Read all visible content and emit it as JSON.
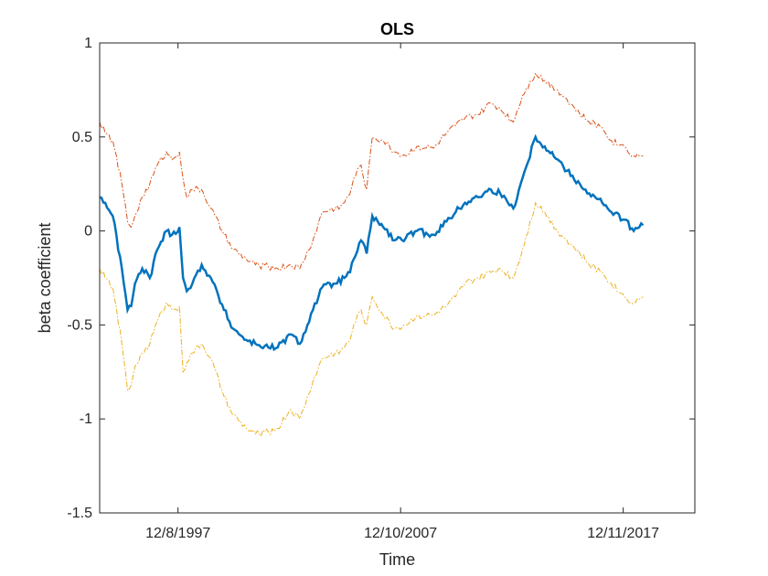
{
  "chart_data": {
    "type": "line",
    "title": "OLS",
    "xlabel": "Time",
    "ylabel": "beta coefficient",
    "xlim": [
      "1994-06-01",
      "2021-03-01"
    ],
    "ylim": [
      -1.5,
      1
    ],
    "yticks": [
      -1.5,
      -1,
      -0.5,
      0,
      0.5,
      1
    ],
    "ytick_labels": [
      "-1.5",
      "-1",
      "-0.5",
      "0",
      "0.5",
      "1"
    ],
    "xticks": [
      "1997-12-08",
      "2007-12-10",
      "2017-12-11"
    ],
    "xtick_labels": [
      "12/8/1997",
      "12/10/2007",
      "12/11/2017"
    ],
    "grid": false,
    "legend": "none",
    "series": [
      {
        "role": "upper",
        "color": "#D95319",
        "style": "dash-dot",
        "x": [
          "1994-06-01",
          "1994-09-01",
          "1995-01-01",
          "1995-06-01",
          "1995-09-01",
          "1995-11-01",
          "1996-01-01",
          "1996-05-01",
          "1996-09-01",
          "1997-01-01",
          "1997-06-01",
          "1997-09-01",
          "1998-01-01",
          "1998-03-01",
          "1998-05-01",
          "1998-08-01",
          "1999-01-01",
          "1999-06-01",
          "2000-01-01",
          "2000-06-01",
          "2001-01-01",
          "2001-06-01",
          "2002-01-01",
          "2002-06-01",
          "2003-01-01",
          "2003-06-01",
          "2004-01-01",
          "2004-06-01",
          "2005-01-01",
          "2005-06-01",
          "2005-09-01",
          "2005-11-01",
          "2006-03-01",
          "2006-06-01",
          "2006-09-01",
          "2007-03-01",
          "2007-09-01",
          "2008-03-01",
          "2008-09-01",
          "2009-06-01",
          "2010-01-01",
          "2010-06-01",
          "2010-11-01",
          "2011-06-01",
          "2012-01-01",
          "2012-06-01",
          "2013-01-01",
          "2013-06-01",
          "2014-01-01",
          "2014-06-01",
          "2015-01-01",
          "2015-06-01",
          "2016-01-01",
          "2016-06-01",
          "2017-01-01",
          "2017-06-01",
          "2018-01-01",
          "2018-06-01",
          "2018-11-01"
        ],
        "y": [
          0.58,
          0.52,
          0.48,
          0.25,
          0.05,
          0.02,
          0.08,
          0.18,
          0.25,
          0.35,
          0.42,
          0.38,
          0.42,
          0.28,
          0.18,
          0.22,
          0.22,
          0.12,
          -0.02,
          -0.1,
          -0.15,
          -0.18,
          -0.19,
          -0.2,
          -0.18,
          -0.2,
          -0.05,
          0.1,
          0.12,
          0.15,
          0.2,
          0.28,
          0.35,
          0.22,
          0.5,
          0.48,
          0.42,
          0.4,
          0.45,
          0.44,
          0.52,
          0.56,
          0.6,
          0.62,
          0.68,
          0.65,
          0.58,
          0.72,
          0.84,
          0.8,
          0.75,
          0.7,
          0.62,
          0.58,
          0.55,
          0.48,
          0.45,
          0.4,
          0.4
        ]
      },
      {
        "role": "estimate",
        "color": "#0072BD",
        "style": "solid",
        "x": [
          "1994-06-01",
          "1994-09-01",
          "1995-01-01",
          "1995-06-01",
          "1995-09-01",
          "1995-11-01",
          "1996-01-01",
          "1996-05-01",
          "1996-09-01",
          "1997-01-01",
          "1997-06-01",
          "1997-09-01",
          "1998-01-01",
          "1998-03-01",
          "1998-05-01",
          "1998-08-01",
          "1999-01-01",
          "1999-06-01",
          "2000-01-01",
          "2000-06-01",
          "2001-01-01",
          "2001-06-01",
          "2002-01-01",
          "2002-06-01",
          "2003-01-01",
          "2003-06-01",
          "2004-01-01",
          "2004-06-01",
          "2005-01-01",
          "2005-06-01",
          "2005-09-01",
          "2005-11-01",
          "2006-03-01",
          "2006-06-01",
          "2006-09-01",
          "2007-03-01",
          "2007-09-01",
          "2008-03-01",
          "2008-09-01",
          "2009-06-01",
          "2010-01-01",
          "2010-06-01",
          "2010-11-01",
          "2011-06-01",
          "2012-01-01",
          "2012-06-01",
          "2013-01-01",
          "2013-06-01",
          "2014-01-01",
          "2014-06-01",
          "2015-01-01",
          "2015-06-01",
          "2016-01-01",
          "2016-06-01",
          "2017-01-01",
          "2017-06-01",
          "2018-01-01",
          "2018-06-01",
          "2018-11-01"
        ],
        "y": [
          0.18,
          0.15,
          0.08,
          -0.2,
          -0.42,
          -0.4,
          -0.28,
          -0.2,
          -0.25,
          -0.1,
          0.0,
          -0.02,
          0.02,
          -0.25,
          -0.32,
          -0.28,
          -0.18,
          -0.25,
          -0.42,
          -0.52,
          -0.58,
          -0.6,
          -0.62,
          -0.62,
          -0.55,
          -0.6,
          -0.42,
          -0.3,
          -0.28,
          -0.25,
          -0.22,
          -0.15,
          -0.05,
          -0.12,
          0.08,
          0.02,
          -0.05,
          -0.04,
          0.0,
          -0.02,
          0.05,
          0.1,
          0.15,
          0.18,
          0.22,
          0.2,
          0.12,
          0.28,
          0.5,
          0.45,
          0.38,
          0.32,
          0.25,
          0.2,
          0.15,
          0.1,
          0.06,
          0.0,
          0.03
        ]
      },
      {
        "role": "lower",
        "color": "#EDB120",
        "style": "dash-dot",
        "x": [
          "1994-06-01",
          "1994-09-01",
          "1995-01-01",
          "1995-06-01",
          "1995-09-01",
          "1995-11-01",
          "1996-01-01",
          "1996-05-01",
          "1996-09-01",
          "1997-01-01",
          "1997-06-01",
          "1997-09-01",
          "1998-01-01",
          "1998-03-01",
          "1998-05-01",
          "1998-08-01",
          "1999-01-01",
          "1999-06-01",
          "2000-01-01",
          "2000-06-01",
          "2001-01-01",
          "2001-06-01",
          "2002-01-01",
          "2002-06-01",
          "2003-01-01",
          "2003-06-01",
          "2004-01-01",
          "2004-06-01",
          "2005-01-01",
          "2005-06-01",
          "2005-09-01",
          "2005-11-01",
          "2006-03-01",
          "2006-06-01",
          "2006-09-01",
          "2007-03-01",
          "2007-09-01",
          "2008-03-01",
          "2008-09-01",
          "2009-06-01",
          "2010-01-01",
          "2010-06-01",
          "2010-11-01",
          "2011-06-01",
          "2012-01-01",
          "2012-06-01",
          "2013-01-01",
          "2013-06-01",
          "2014-01-01",
          "2014-06-01",
          "2015-01-01",
          "2015-06-01",
          "2016-01-01",
          "2016-06-01",
          "2017-01-01",
          "2017-06-01",
          "2018-01-01",
          "2018-06-01",
          "2018-11-01"
        ],
        "y": [
          -0.2,
          -0.25,
          -0.3,
          -0.6,
          -0.85,
          -0.82,
          -0.72,
          -0.65,
          -0.6,
          -0.48,
          -0.38,
          -0.42,
          -0.4,
          -0.75,
          -0.7,
          -0.65,
          -0.6,
          -0.68,
          -0.88,
          -0.98,
          -1.05,
          -1.08,
          -1.07,
          -1.05,
          -0.95,
          -1.0,
          -0.8,
          -0.68,
          -0.65,
          -0.62,
          -0.58,
          -0.5,
          -0.42,
          -0.5,
          -0.35,
          -0.45,
          -0.52,
          -0.5,
          -0.45,
          -0.45,
          -0.4,
          -0.35,
          -0.28,
          -0.25,
          -0.22,
          -0.2,
          -0.25,
          -0.1,
          0.15,
          0.1,
          0.0,
          -0.05,
          -0.12,
          -0.18,
          -0.22,
          -0.28,
          -0.35,
          -0.38,
          -0.35
        ]
      }
    ]
  }
}
